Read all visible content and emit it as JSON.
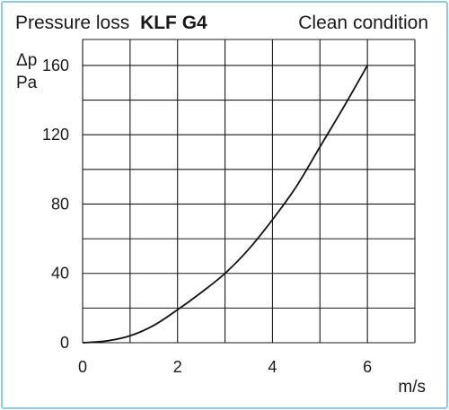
{
  "header": {
    "title_prefix": "Pressure loss",
    "title_bold": "KLF G4",
    "condition": "Clean condition"
  },
  "chart_data": {
    "type": "line",
    "title": "Pressure loss KLF G4",
    "subtitle": "Clean condition",
    "xlabel": "m/s",
    "ylabel_symbol": "Δp",
    "ylabel_unit": "Pa",
    "xlim": [
      0,
      7
    ],
    "ylim": [
      0,
      175
    ],
    "x_grid_step": 1,
    "y_grid_step": 20,
    "grid": true,
    "x_ticks": [
      0,
      2,
      4,
      6
    ],
    "x_tick_labels": [
      "0",
      "2",
      "4",
      "6"
    ],
    "y_ticks": [
      0,
      40,
      80,
      120,
      160
    ],
    "y_tick_labels": [
      "0",
      "40",
      "80",
      "120",
      "160"
    ],
    "series": [
      {
        "x": [
          0,
          0.5,
          1,
          1.5,
          2,
          2.5,
          3,
          3.5,
          4,
          4.5,
          5,
          5.5,
          6
        ],
        "y": [
          0,
          1,
          4,
          10,
          19,
          29,
          40,
          54,
          71,
          90,
          113,
          136,
          160
        ]
      }
    ]
  }
}
